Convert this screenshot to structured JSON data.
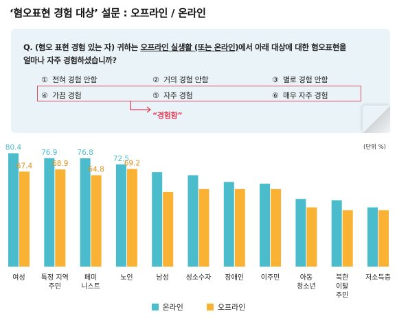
{
  "title": "‘혐오표현 경험 대상’ 설문 : 오프라인 / 온라인",
  "question": {
    "prefix": "Q. (혐오 표현 경험 있는 자) 귀하는 ",
    "underline1": "오프라인 실생활 (또는 온라인)",
    "middle": "에서 아래 대상에 대한 혐오표현을",
    "line2": "얼마나 자주 경험하셨습니까?"
  },
  "options": [
    {
      "num": "①",
      "label": "전혀 경험 안함"
    },
    {
      "num": "②",
      "label": "거의 경험 안함"
    },
    {
      "num": "③",
      "label": "별로 경험 안함"
    },
    {
      "num": "④",
      "label": "가끔 경험"
    },
    {
      "num": "⑤",
      "label": "자주 경험"
    },
    {
      "num": "⑥",
      "label": "매우 자주 경험"
    }
  ],
  "callout": "“경험함”",
  "unit": "(단위 %)",
  "chart_data": {
    "type": "bar",
    "categories": [
      "여성",
      "특정 지역\n주민",
      "페미\n니스트",
      "노인",
      "남성",
      "성소수자",
      "장애인",
      "이주민",
      "아동\n청소년",
      "북한\n이탈\n주민",
      "저소득층"
    ],
    "series": [
      {
        "name": "온라인",
        "color": "#4bbccb",
        "values": [
          80.4,
          76.9,
          76.8,
          72.5,
          67.0,
          64.8,
          60.0,
          58.8,
          48.0,
          47.0,
          42.0
        ],
        "labeled": [
          true,
          true,
          true,
          true,
          false,
          false,
          false,
          false,
          false,
          false,
          false
        ]
      },
      {
        "name": "오프라인",
        "color": "#f9b233",
        "values": [
          67.4,
          68.9,
          64.8,
          69.2,
          53.0,
          55.0,
          55.0,
          55.0,
          42.0,
          40.0,
          40.0
        ],
        "labeled": [
          true,
          true,
          true,
          true,
          false,
          false,
          false,
          false,
          false,
          false,
          false
        ]
      }
    ],
    "ylim": [
      0,
      87
    ],
    "legend_position": "bottom"
  }
}
